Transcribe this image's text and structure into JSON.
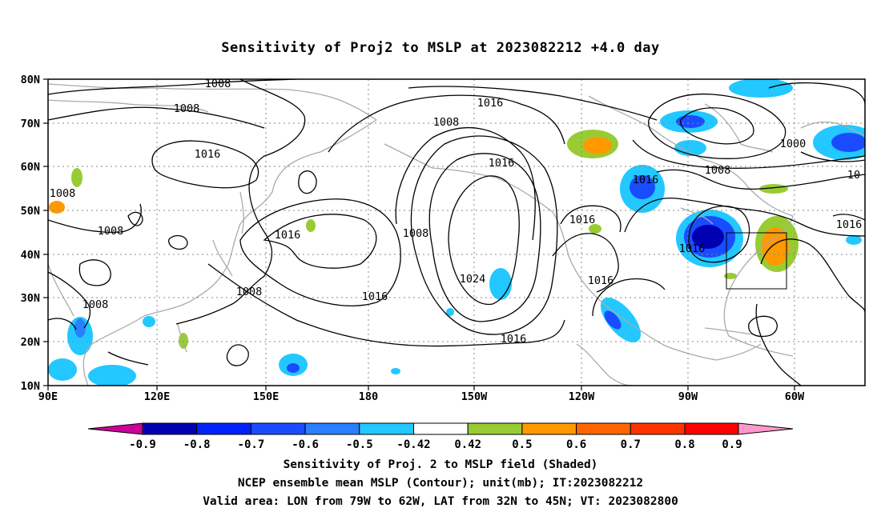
{
  "figure": {
    "title": "Sensitivity of Proj2 to MSLP at 2023082212 +4.0 day",
    "captions": [
      "Sensitivity of Proj. 2 to MSLP field (Shaded)",
      "NCEP ensemble mean MSLP (Contour); unit(mb); IT:2023082212",
      "Valid area: LON from 79W to 62W, LAT from 32N to 45N; VT: 2023082800"
    ]
  },
  "map": {
    "lat_ticks": [
      "80N",
      "70N",
      "60N",
      "50N",
      "40N",
      "30N",
      "20N",
      "10N"
    ],
    "lon_ticks": [
      "90E",
      "120E",
      "150E",
      "180",
      "150W",
      "120W",
      "90W",
      "60W"
    ],
    "contour_labels": [
      "1008",
      "1008",
      "1016",
      "1008",
      "1016",
      "1008",
      "1016",
      "1008",
      "1016",
      "1016",
      "1008",
      "1016",
      "1024",
      "1016",
      "1016",
      "1016",
      "1008",
      "1016",
      "1008",
      "1000",
      "1008",
      "10",
      "1016"
    ],
    "grid": true
  },
  "colorbar": {
    "labels": [
      "-0.9",
      "-0.8",
      "-0.7",
      "-0.6",
      "-0.5",
      "-0.42",
      "0.42",
      "0.5",
      "0.6",
      "0.7",
      "0.8",
      "0.9"
    ],
    "colors": [
      "#cc0099",
      "#0000b3",
      "#0022ff",
      "#1a4cff",
      "#2a7fff",
      "#22c8ff",
      "#ffffff",
      "#99cc33",
      "#ff9900",
      "#ff6600",
      "#ff3300",
      "#ff0000",
      "#ff99cc"
    ]
  }
}
